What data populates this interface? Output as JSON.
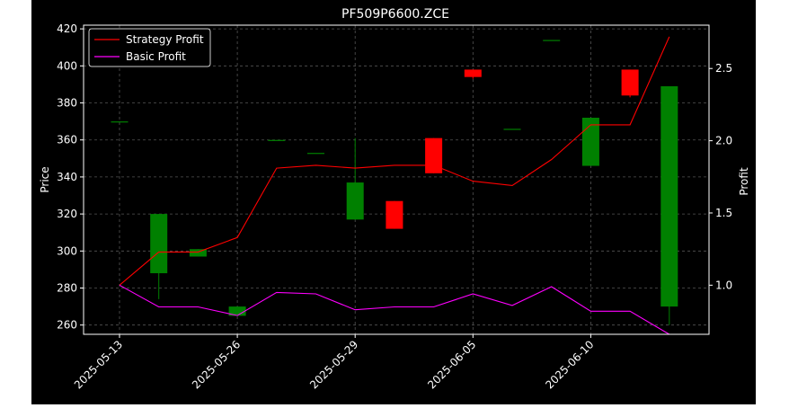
{
  "chart_data": {
    "type": "candlestick",
    "title": "PF509P6600.ZCE",
    "ylabel": "Price",
    "y2label": "Profit",
    "ylim": [
      255,
      422
    ],
    "y2lim": [
      0.66,
      2.8
    ],
    "yticks": [
      260,
      280,
      300,
      320,
      340,
      360,
      380,
      400,
      420
    ],
    "y2ticks": [
      "1.0",
      "1.5",
      "2.0",
      "2.5"
    ],
    "y2tick_values": [
      1.0,
      1.5,
      2.0,
      2.5
    ],
    "xtick_labels": [
      "2025-05-13",
      "2025-05-26",
      "2025-05-29",
      "2025-06-05",
      "2025-06-10"
    ],
    "xtick_indices": [
      0,
      3,
      6,
      9,
      12
    ],
    "grid": true,
    "legend_position": "top-left",
    "colors": {
      "up": "#008000",
      "down": "#ff0000",
      "strategy": "#ff0000",
      "basic": "#ff00ff"
    },
    "candles": [
      {
        "o": 370,
        "h": 370,
        "l": 370,
        "c": 370
      },
      {
        "o": 288,
        "h": 320,
        "l": 274,
        "c": 320
      },
      {
        "o": 297,
        "h": 301,
        "l": 297,
        "c": 301
      },
      {
        "o": 265,
        "h": 270,
        "l": 265,
        "c": 270
      },
      {
        "o": 360,
        "h": 360,
        "l": 360,
        "c": 360
      },
      {
        "o": 353,
        "h": 353,
        "l": 353,
        "c": 353
      },
      {
        "o": 317,
        "h": 361,
        "l": 317,
        "c": 337
      },
      {
        "o": 327,
        "h": 327,
        "l": 312,
        "c": 312
      },
      {
        "o": 361,
        "h": 361,
        "l": 342,
        "c": 342
      },
      {
        "o": 398,
        "h": 398,
        "l": 393,
        "c": 394
      },
      {
        "o": 366,
        "h": 366,
        "l": 366,
        "c": 366
      },
      {
        "o": 414,
        "h": 414,
        "l": 414,
        "c": 414
      },
      {
        "o": 346,
        "h": 372,
        "l": 346,
        "c": 372
      },
      {
        "o": 398,
        "h": 398,
        "l": 383,
        "c": 384
      },
      {
        "o": 270,
        "h": 389,
        "l": 260,
        "c": 389
      }
    ],
    "series": [
      {
        "name": "Strategy Profit",
        "values": [
          1.0,
          1.23,
          1.23,
          1.33,
          1.81,
          1.83,
          1.81,
          1.83,
          1.83,
          1.72,
          1.69,
          1.87,
          2.11,
          2.11,
          2.72
        ]
      },
      {
        "name": "Basic Profit",
        "values": [
          1.0,
          0.85,
          0.85,
          0.79,
          0.95,
          0.94,
          0.83,
          0.85,
          0.85,
          0.94,
          0.86,
          0.99,
          0.82,
          0.82,
          0.66
        ]
      }
    ]
  }
}
